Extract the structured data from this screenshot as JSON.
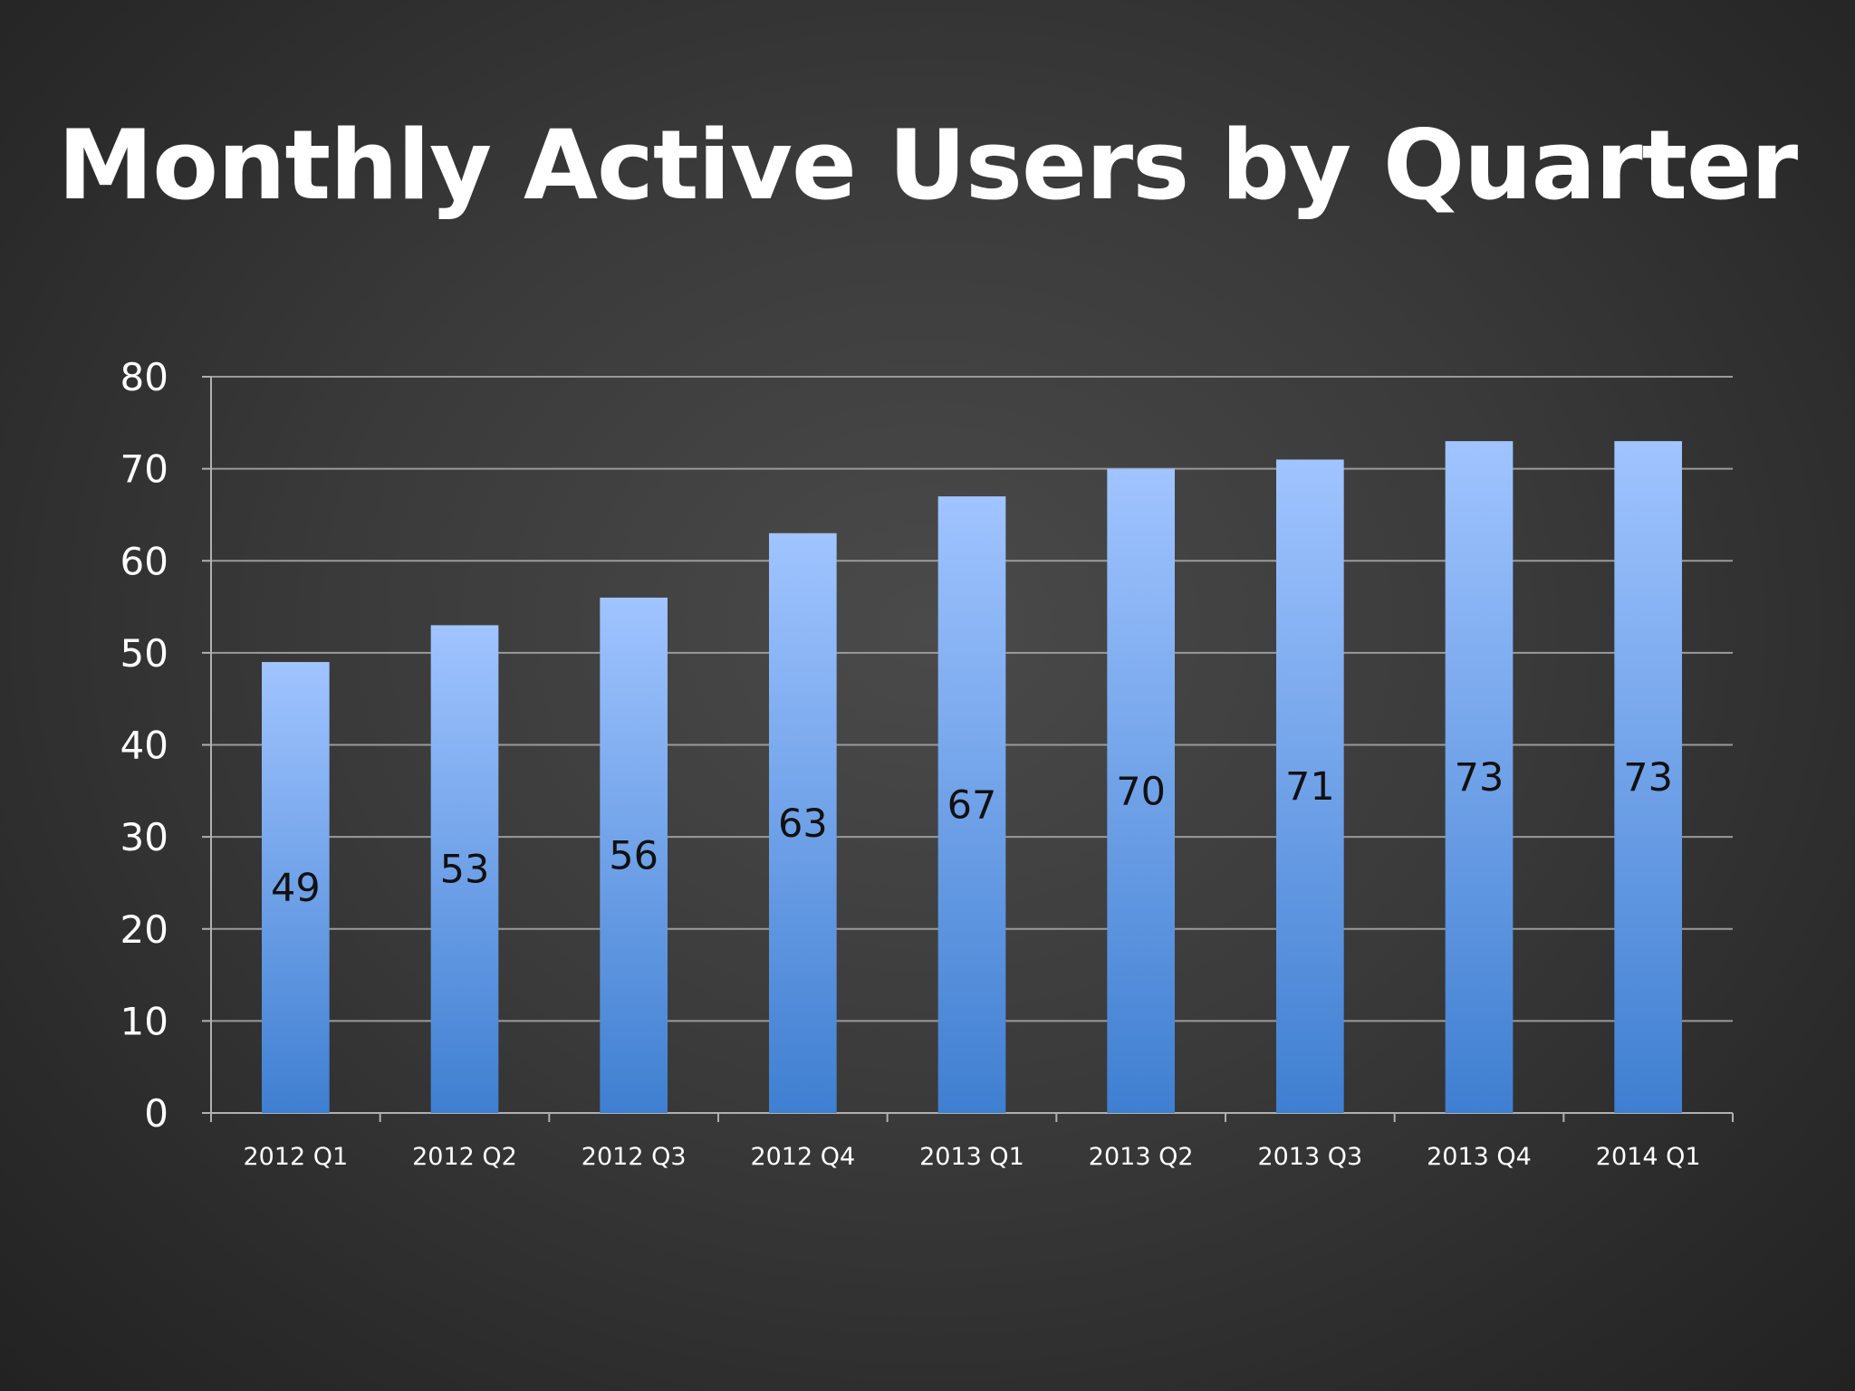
{
  "slide": {
    "title": "Monthly Active Users by Quarter"
  },
  "colors": {
    "bar_top": "#a0c4ff",
    "bar_bottom": "#3f7fd1",
    "gridline": "#9a9a9a",
    "axis": "#b0b0b0",
    "text": "#ffffff",
    "data_label": "#111111"
  },
  "chart_data": {
    "type": "bar",
    "title": "Monthly Active Users by Quarter",
    "xlabel": "",
    "ylabel": "",
    "categories": [
      "2012 Q1",
      "2012 Q2",
      "2012 Q3",
      "2012 Q4",
      "2013 Q1",
      "2013 Q2",
      "2013 Q3",
      "2013 Q4",
      "2014 Q1"
    ],
    "values": [
      49,
      53,
      56,
      63,
      67,
      70,
      71,
      73,
      73
    ],
    "ylim": [
      0,
      80
    ],
    "yticks": [
      0,
      10,
      20,
      30,
      40,
      50,
      60,
      70,
      80
    ],
    "grid": true,
    "legend": false,
    "data_labels": true
  }
}
